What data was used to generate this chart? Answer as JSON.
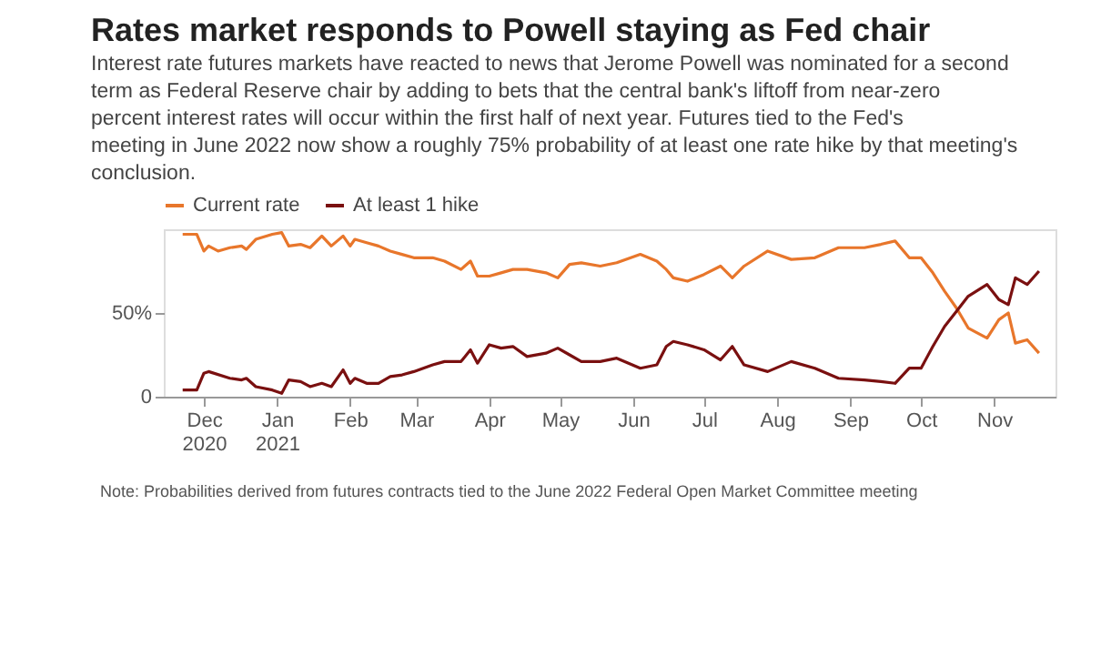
{
  "chart_data": {
    "type": "line",
    "title": "Rates market responds to Powell staying as Fed chair",
    "subtitle": "Interest rate futures markets have reacted to news that Jerome Powell was nominated for a second term as Federal Reserve chair by adding to bets that the central bank's liftoff from near-zero percent interest rates will occur within the first half of next year. Futures tied to the Fed's meeting in June 2022 now show a roughly 75% probability of at least one rate hike by that meeting's conclusion.",
    "series": [
      {
        "name": "Current rate",
        "color": "#e8762b",
        "x": [
          "2020-11-22",
          "2020-11-28",
          "2020-12-01",
          "2020-12-03",
          "2020-12-07",
          "2020-12-12",
          "2020-12-17",
          "2020-12-19",
          "2020-12-23",
          "2020-12-30",
          "2021-01-03",
          "2021-01-06",
          "2021-01-11",
          "2021-01-15",
          "2021-01-20",
          "2021-01-24",
          "2021-01-29",
          "2021-02-01",
          "2021-02-03",
          "2021-02-08",
          "2021-02-13",
          "2021-02-18",
          "2021-02-23",
          "2021-02-28",
          "2021-03-08",
          "2021-03-13",
          "2021-03-20",
          "2021-03-24",
          "2021-03-27",
          "2021-04-01",
          "2021-04-06",
          "2021-04-11",
          "2021-04-17",
          "2021-04-25",
          "2021-04-30",
          "2021-05-05",
          "2021-05-10",
          "2021-05-18",
          "2021-05-25",
          "2021-06-04",
          "2021-06-11",
          "2021-06-15",
          "2021-06-18",
          "2021-06-24",
          "2021-07-01",
          "2021-07-08",
          "2021-07-13",
          "2021-07-18",
          "2021-07-28",
          "2021-08-07",
          "2021-08-17",
          "2021-08-27",
          "2021-09-07",
          "2021-09-14",
          "2021-09-20",
          "2021-09-26",
          "2021-10-01",
          "2021-10-06",
          "2021-10-11",
          "2021-10-16",
          "2021-10-21",
          "2021-10-29",
          "2021-11-03",
          "2021-11-07",
          "2021-11-10",
          "2021-11-15",
          "2021-11-20"
        ],
        "values": [
          97,
          97,
          87,
          90,
          87,
          89,
          90,
          88,
          94,
          97,
          98,
          90,
          91,
          89,
          96,
          90,
          96,
          90,
          94,
          92,
          90,
          87,
          85,
          83,
          83,
          81,
          76,
          81,
          72,
          72,
          74,
          76,
          76,
          74,
          71,
          79,
          80,
          78,
          80,
          85,
          81,
          76,
          71,
          69,
          73,
          78,
          71,
          78,
          87,
          82,
          83,
          89,
          89,
          91,
          93,
          83,
          83,
          74,
          63,
          53,
          41,
          35,
          46,
          50,
          32,
          34,
          26
        ]
      },
      {
        "name": "At least 1 hike",
        "color": "#7a1010",
        "x": [
          "2020-11-22",
          "2020-11-28",
          "2020-12-01",
          "2020-12-03",
          "2020-12-12",
          "2020-12-17",
          "2020-12-19",
          "2020-12-23",
          "2020-12-30",
          "2021-01-03",
          "2021-01-06",
          "2021-01-11",
          "2021-01-15",
          "2021-01-20",
          "2021-01-24",
          "2021-01-29",
          "2021-02-01",
          "2021-02-03",
          "2021-02-08",
          "2021-02-13",
          "2021-02-18",
          "2021-02-23",
          "2021-02-28",
          "2021-03-08",
          "2021-03-13",
          "2021-03-20",
          "2021-03-24",
          "2021-03-27",
          "2021-04-01",
          "2021-04-06",
          "2021-04-11",
          "2021-04-17",
          "2021-04-25",
          "2021-04-30",
          "2021-05-05",
          "2021-05-10",
          "2021-05-18",
          "2021-05-25",
          "2021-06-04",
          "2021-06-11",
          "2021-06-15",
          "2021-06-18",
          "2021-06-24",
          "2021-07-01",
          "2021-07-08",
          "2021-07-13",
          "2021-07-18",
          "2021-07-28",
          "2021-08-07",
          "2021-08-17",
          "2021-08-27",
          "2021-09-07",
          "2021-09-14",
          "2021-09-20",
          "2021-09-26",
          "2021-10-01",
          "2021-10-06",
          "2021-10-11",
          "2021-10-16",
          "2021-10-21",
          "2021-10-29",
          "2021-11-03",
          "2021-11-07",
          "2021-11-10",
          "2021-11-15",
          "2021-11-20"
        ],
        "values": [
          4,
          4,
          14,
          15,
          11,
          10,
          11,
          6,
          4,
          2,
          10,
          9,
          6,
          8,
          6,
          16,
          8,
          11,
          8,
          8,
          12,
          13,
          15,
          19,
          21,
          21,
          28,
          20,
          31,
          29,
          30,
          24,
          26,
          29,
          25,
          21,
          21,
          23,
          17,
          19,
          30,
          33,
          31,
          28,
          22,
          30,
          19,
          15,
          21,
          17,
          11,
          10,
          9,
          8,
          17,
          17,
          30,
          42,
          51,
          60,
          67,
          58,
          55,
          71,
          67,
          75
        ]
      }
    ],
    "xlim": [
      "2020-11-14",
      "2021-11-27"
    ],
    "xticks": [
      {
        "value": "2020-12-01",
        "label": "Dec\n2020"
      },
      {
        "value": "2021-01-01",
        "label": "Jan\n2021"
      },
      {
        "value": "2021-02-01",
        "label": "Feb"
      },
      {
        "value": "2021-03-01",
        "label": "Mar"
      },
      {
        "value": "2021-04-01",
        "label": "Apr"
      },
      {
        "value": "2021-05-01",
        "label": "May"
      },
      {
        "value": "2021-06-01",
        "label": "Jun"
      },
      {
        "value": "2021-07-01",
        "label": "Jul"
      },
      {
        "value": "2021-08-01",
        "label": "Aug"
      },
      {
        "value": "2021-09-01",
        "label": "Sep"
      },
      {
        "value": "2021-10-01",
        "label": "Oct"
      },
      {
        "value": "2021-11-01",
        "label": "Nov"
      }
    ],
    "ylim": [
      0,
      100
    ],
    "yticks": [
      0,
      {
        "value": 50,
        "label": "50%"
      }
    ],
    "grid": false,
    "legend": "top left",
    "annotations": [
      "Note: Probabilities derived from futures contracts tied to the June 2022 Federal Open Market Committee meeting"
    ]
  }
}
